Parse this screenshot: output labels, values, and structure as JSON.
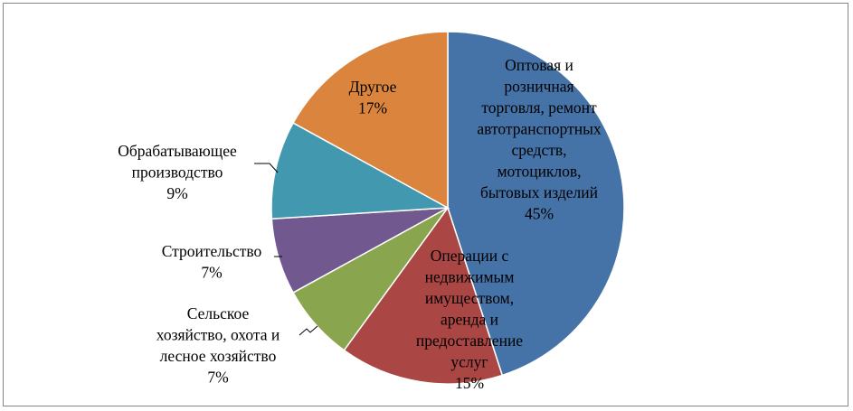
{
  "chart_data": {
    "type": "pie",
    "title": "",
    "start": "12 o'clock, clockwise",
    "legend": "none (category names shown as data labels)",
    "slices": [
      {
        "label_lines": [
          "Оптовая и",
          "розничная",
          "торговля, ремонт",
          "автотранспортных",
          "средств,",
          "мотоциклов,",
          "бытовых изделий"
        ],
        "percent_label": "45%",
        "value": 45,
        "color": "#4572A7"
      },
      {
        "label_lines": [
          "Операции с",
          "недвижимым",
          "имуществом,",
          "аренда и",
          "предоставление",
          "услуг"
        ],
        "percent_label": "15%",
        "value": 15,
        "color": "#AA4643"
      },
      {
        "label_lines": [
          "Сельское",
          "хозяйство, охота и",
          "лесное хозяйство"
        ],
        "percent_label": "7%",
        "value": 7,
        "color": "#89A54E"
      },
      {
        "label_lines": [
          "Строительство"
        ],
        "percent_label": "7%",
        "value": 7,
        "color": "#71588F"
      },
      {
        "label_lines": [
          "Обрабатывающее",
          "производство"
        ],
        "percent_label": "9%",
        "value": 9,
        "color": "#4198AF"
      },
      {
        "label_lines": [
          "Другое"
        ],
        "percent_label": "17%",
        "value": 17,
        "color": "#DB843D"
      }
    ]
  }
}
